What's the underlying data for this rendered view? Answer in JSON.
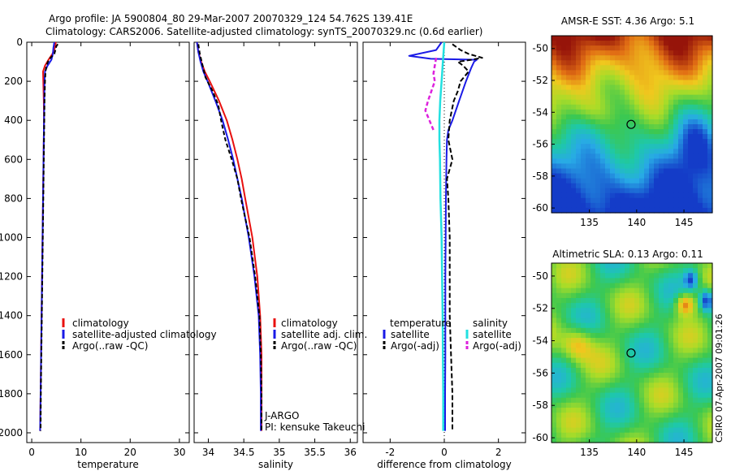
{
  "header": {
    "line1": "Argo profile: JA 5900804_80 29-Mar-2007 20070329_124 54.762S 139.41E",
    "line2": "Climatology: CARS2006. Satellite-adjusted climatology: synTS_20070329.nc (0.6d earlier)"
  },
  "side_label": "CSIRO 07-Apr-2007 09:01:26",
  "colors": {
    "clim": "#e8100f",
    "sat": "#1a1ae6",
    "argo": "#000000",
    "sal_sat": "#22e0e0",
    "sal_argo": "#dd22dd"
  },
  "chart_data": [
    {
      "type": "line",
      "id": "temperature",
      "xlabel": "temperature",
      "xlim": [
        -1,
        32
      ],
      "ylim": [
        0,
        2050
      ],
      "xticks": [
        0,
        10,
        20,
        30
      ],
      "yticks": [
        0,
        200,
        400,
        600,
        800,
        1000,
        1200,
        1400,
        1600,
        1800,
        2000
      ],
      "legend": [
        "climatology",
        "satellite-adjusted climatology",
        "Argo(..raw -QC)"
      ],
      "series": [
        {
          "name": "climatology",
          "style": "clim",
          "depth": [
            0,
            30,
            60,
            90,
            120,
            150,
            200,
            300,
            400,
            600,
            800,
            1000,
            1200,
            1400,
            1600,
            1800,
            1990
          ],
          "values": [
            4.9,
            4.7,
            4.2,
            3.4,
            2.7,
            2.3,
            2.35,
            2.45,
            2.5,
            2.4,
            2.3,
            2.2,
            2.1,
            2.0,
            1.9,
            1.8,
            1.7
          ]
        },
        {
          "name": "satellite-adjusted climatology",
          "style": "sat",
          "depth": [
            0,
            30,
            60,
            90,
            120,
            150,
            200,
            300,
            400,
            600,
            800,
            1000,
            1200,
            1400,
            1600,
            1800,
            1990
          ],
          "values": [
            4.6,
            4.4,
            4.3,
            4.0,
            3.2,
            2.7,
            2.6,
            2.55,
            2.5,
            2.4,
            2.3,
            2.2,
            2.1,
            2.0,
            1.9,
            1.8,
            1.7
          ]
        },
        {
          "name": "Argo(..raw -QC)",
          "style": "argo",
          "depth": [
            10,
            20,
            40,
            60,
            80,
            100,
            120,
            150,
            200,
            300,
            400,
            600,
            800,
            1000,
            1200,
            1400,
            1600,
            1800,
            1990
          ],
          "values": [
            5.3,
            5.0,
            4.8,
            4.6,
            3.8,
            3.3,
            3.0,
            2.8,
            2.7,
            2.6,
            2.55,
            2.45,
            2.35,
            2.25,
            2.15,
            2.05,
            1.95,
            1.85,
            1.8
          ]
        }
      ]
    },
    {
      "type": "line",
      "id": "salinity",
      "xlabel": "salinity",
      "xlim": [
        33.8,
        36.1
      ],
      "ylim": [
        0,
        2050
      ],
      "xticks": [
        34,
        34.5,
        35,
        35.5,
        36
      ],
      "yticks": [],
      "legend": [
        "climatology",
        "satellite adj. clim.",
        "Argo(..raw -QC)"
      ],
      "annotation": [
        "J-ARGO",
        "PI: kensuke Takeuchi"
      ],
      "series": [
        {
          "name": "climatology",
          "style": "clim",
          "depth": [
            0,
            50,
            100,
            150,
            200,
            300,
            400,
            500,
            600,
            700,
            800,
            900,
            1000,
            1200,
            1400,
            1600,
            1800,
            1990
          ],
          "values": [
            33.84,
            33.86,
            33.9,
            33.95,
            34.02,
            34.15,
            34.26,
            34.34,
            34.41,
            34.47,
            34.52,
            34.57,
            34.62,
            34.69,
            34.73,
            34.75,
            34.75,
            34.75
          ]
        },
        {
          "name": "satellite adj. clim.",
          "style": "sat",
          "depth": [
            0,
            50,
            100,
            150,
            200,
            300,
            400,
            500,
            600,
            700,
            800,
            900,
            1000,
            1200,
            1400,
            1600,
            1800,
            1990
          ],
          "values": [
            33.84,
            33.86,
            33.89,
            33.93,
            33.99,
            34.1,
            34.2,
            34.28,
            34.35,
            34.41,
            34.47,
            34.52,
            34.57,
            34.65,
            34.71,
            34.73,
            34.74,
            34.74
          ]
        },
        {
          "name": "Argo(..raw -QC)",
          "style": "argo",
          "depth": [
            10,
            60,
            120,
            180,
            250,
            320,
            400,
            450,
            500,
            600,
            700,
            800,
            900,
            1000,
            1200,
            1400,
            1600,
            1800,
            1990
          ],
          "values": [
            33.86,
            33.88,
            33.92,
            33.96,
            34.06,
            34.14,
            34.18,
            34.21,
            34.24,
            34.33,
            34.41,
            34.46,
            34.52,
            34.58,
            34.66,
            34.72,
            34.74,
            34.75,
            34.75
          ]
        }
      ]
    },
    {
      "type": "line",
      "id": "difference",
      "xlabel": "difference from climatology",
      "xlim": [
        -3,
        3
      ],
      "ylim": [
        0,
        2050
      ],
      "xticks": [
        -2,
        0,
        2
      ],
      "yticks": [],
      "legend_left": {
        "title": "temperature",
        "items": [
          "satellite",
          "Argo(-adj)"
        ]
      },
      "legend_right": {
        "title": "salinity",
        "items": [
          "satellite",
          "Argo(-adj)"
        ]
      },
      "series": [
        {
          "name": "temp satellite",
          "style": "sat",
          "depth": [
            0,
            40,
            70,
            85,
            90,
            100,
            130,
            200,
            300,
            400,
            450,
            500,
            600,
            800,
            1000,
            1200,
            1400,
            1600,
            1800,
            1990
          ],
          "values": [
            -0.1,
            -0.3,
            -1.3,
            -0.5,
            1.2,
            1.1,
            1.0,
            0.8,
            0.55,
            0.3,
            0.15,
            0.1,
            0.08,
            0.06,
            0.05,
            0.04,
            0.04,
            0.04,
            0.03,
            0.03
          ]
        },
        {
          "name": "temp Argo(-adj)",
          "style": "argo_dash",
          "depth": [
            10,
            40,
            60,
            80,
            90,
            100,
            120,
            150,
            200,
            250,
            300,
            400,
            500,
            600,
            700,
            800,
            1000,
            1200,
            1400,
            1600,
            1800,
            1990
          ],
          "values": [
            0.3,
            0.6,
            0.9,
            1.4,
            1.0,
            0.5,
            0.7,
            0.9,
            0.6,
            0.5,
            0.35,
            0.2,
            0.15,
            0.3,
            0.1,
            0.15,
            0.2,
            0.2,
            0.2,
            0.25,
            0.3,
            0.3
          ]
        },
        {
          "name": "sal satellite",
          "style": "sal_sat",
          "depth": [
            0,
            100,
            200,
            300,
            400,
            500,
            600,
            800,
            1000,
            1200,
            1400,
            1600,
            1800,
            1990
          ],
          "values": [
            0,
            -0.05,
            -0.1,
            -0.15,
            -0.18,
            -0.18,
            -0.16,
            -0.14,
            -0.1,
            -0.08,
            -0.06,
            -0.05,
            -0.04,
            -0.04
          ]
        },
        {
          "name": "sal Argo(-adj)",
          "style": "sal_argo_dash",
          "depth": [
            80,
            120,
            160,
            200,
            300,
            350,
            400,
            450
          ],
          "values": [
            -0.3,
            -0.35,
            -0.4,
            -0.35,
            -0.6,
            -0.7,
            -0.55,
            -0.4
          ]
        }
      ]
    }
  ],
  "maps": [
    {
      "title": "AMSR-E SST: 4.36 Argo: 5.1",
      "xticks": [
        "135",
        "140",
        "145"
      ],
      "yticks": [
        "-50",
        "-52",
        "-54",
        "-56",
        "-58",
        "-60"
      ],
      "marker": [
        139.41,
        -54.76
      ],
      "lonlim": [
        131,
        148
      ],
      "latlim": [
        -60.3,
        -49.2
      ]
    },
    {
      "title": "Altimetric SLA: 0.13 Argo: 0.11",
      "xticks": [
        "135",
        "140",
        "145"
      ],
      "yticks": [
        "-50",
        "-52",
        "-54",
        "-56",
        "-58",
        "-60"
      ],
      "marker": [
        139.41,
        -54.76
      ],
      "lonlim": [
        131,
        148
      ],
      "latlim": [
        -60.3,
        -49.2
      ]
    }
  ]
}
